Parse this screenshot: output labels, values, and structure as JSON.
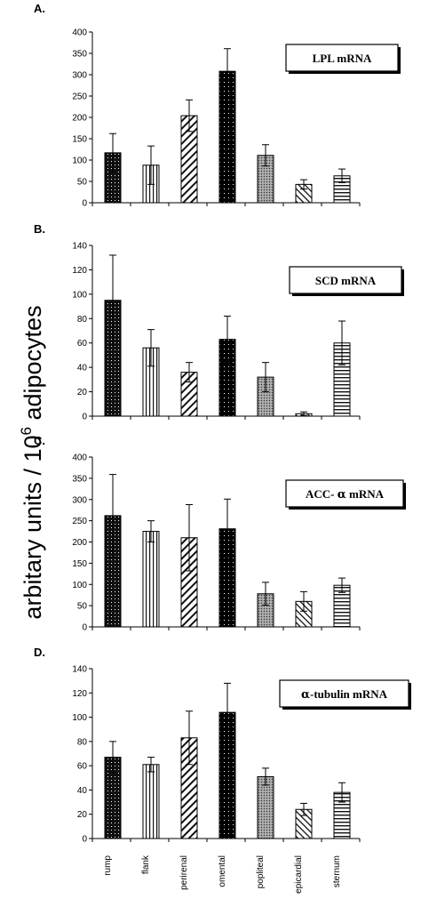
{
  "y_axis_label": "arbitary units / 10",
  "y_axis_label_superscript": "6",
  "y_axis_label_tail": " adipocytes",
  "categories": [
    "rump",
    "flank",
    "perirenal",
    "omental",
    "popliteal",
    "epicardial",
    "sternum"
  ],
  "chart_data": [
    {
      "type": "bar",
      "panel_label": "A.",
      "label": "LPL mRNA",
      "categories": [
        "rump",
        "flank",
        "perirenal",
        "omental",
        "popliteal",
        "epicardial",
        "sternum"
      ],
      "values": [
        117,
        88,
        204,
        308,
        111,
        43,
        63
      ],
      "errors": [
        45,
        45,
        37,
        53,
        25,
        11,
        16
      ],
      "ylim": [
        0,
        400
      ],
      "yticks": [
        "0",
        "50",
        "100",
        "150",
        "200",
        "250",
        "300",
        "350",
        "400"
      ]
    },
    {
      "type": "bar",
      "panel_label": "B.",
      "label": "SCD mRNA",
      "categories": [
        "rump",
        "flank",
        "perirenal",
        "omental",
        "popliteal",
        "epicardial",
        "sternum"
      ],
      "values": [
        95,
        56,
        36,
        63,
        32,
        2,
        60
      ],
      "errors": [
        37,
        15,
        8,
        19,
        12,
        1.5,
        18
      ],
      "ylim": [
        0,
        140
      ],
      "yticks": [
        "0",
        "20",
        "40",
        "60",
        "80",
        "100",
        "120",
        "140"
      ]
    },
    {
      "type": "bar",
      "panel_label": "C.",
      "label_prefix": "ACC- ",
      "label_symbol": "α",
      "label_suffix": " mRNA",
      "categories": [
        "rump",
        "flank",
        "perirenal",
        "omental",
        "popliteal",
        "epicardial",
        "sternum"
      ],
      "values": [
        262,
        225,
        210,
        231,
        78,
        60,
        98
      ],
      "errors": [
        97,
        25,
        78,
        70,
        27,
        23,
        17
      ],
      "ylim": [
        0,
        400
      ],
      "yticks": [
        "0",
        "50",
        "100",
        "150",
        "200",
        "250",
        "300",
        "350",
        "400"
      ]
    },
    {
      "type": "bar",
      "panel_label": "D.",
      "label_symbol": "α",
      "label_suffix": "-tubulin mRNA",
      "categories": [
        "rump",
        "flank",
        "perirenal",
        "omental",
        "popliteal",
        "epicardial",
        "sternum"
      ],
      "values": [
        67,
        61,
        83,
        104,
        51,
        24,
        38
      ],
      "errors": [
        13,
        6,
        22,
        24,
        7,
        5,
        8
      ],
      "ylim": [
        0,
        140
      ],
      "yticks": [
        "0",
        "20",
        "40",
        "60",
        "80",
        "100",
        "120",
        "140"
      ]
    }
  ]
}
